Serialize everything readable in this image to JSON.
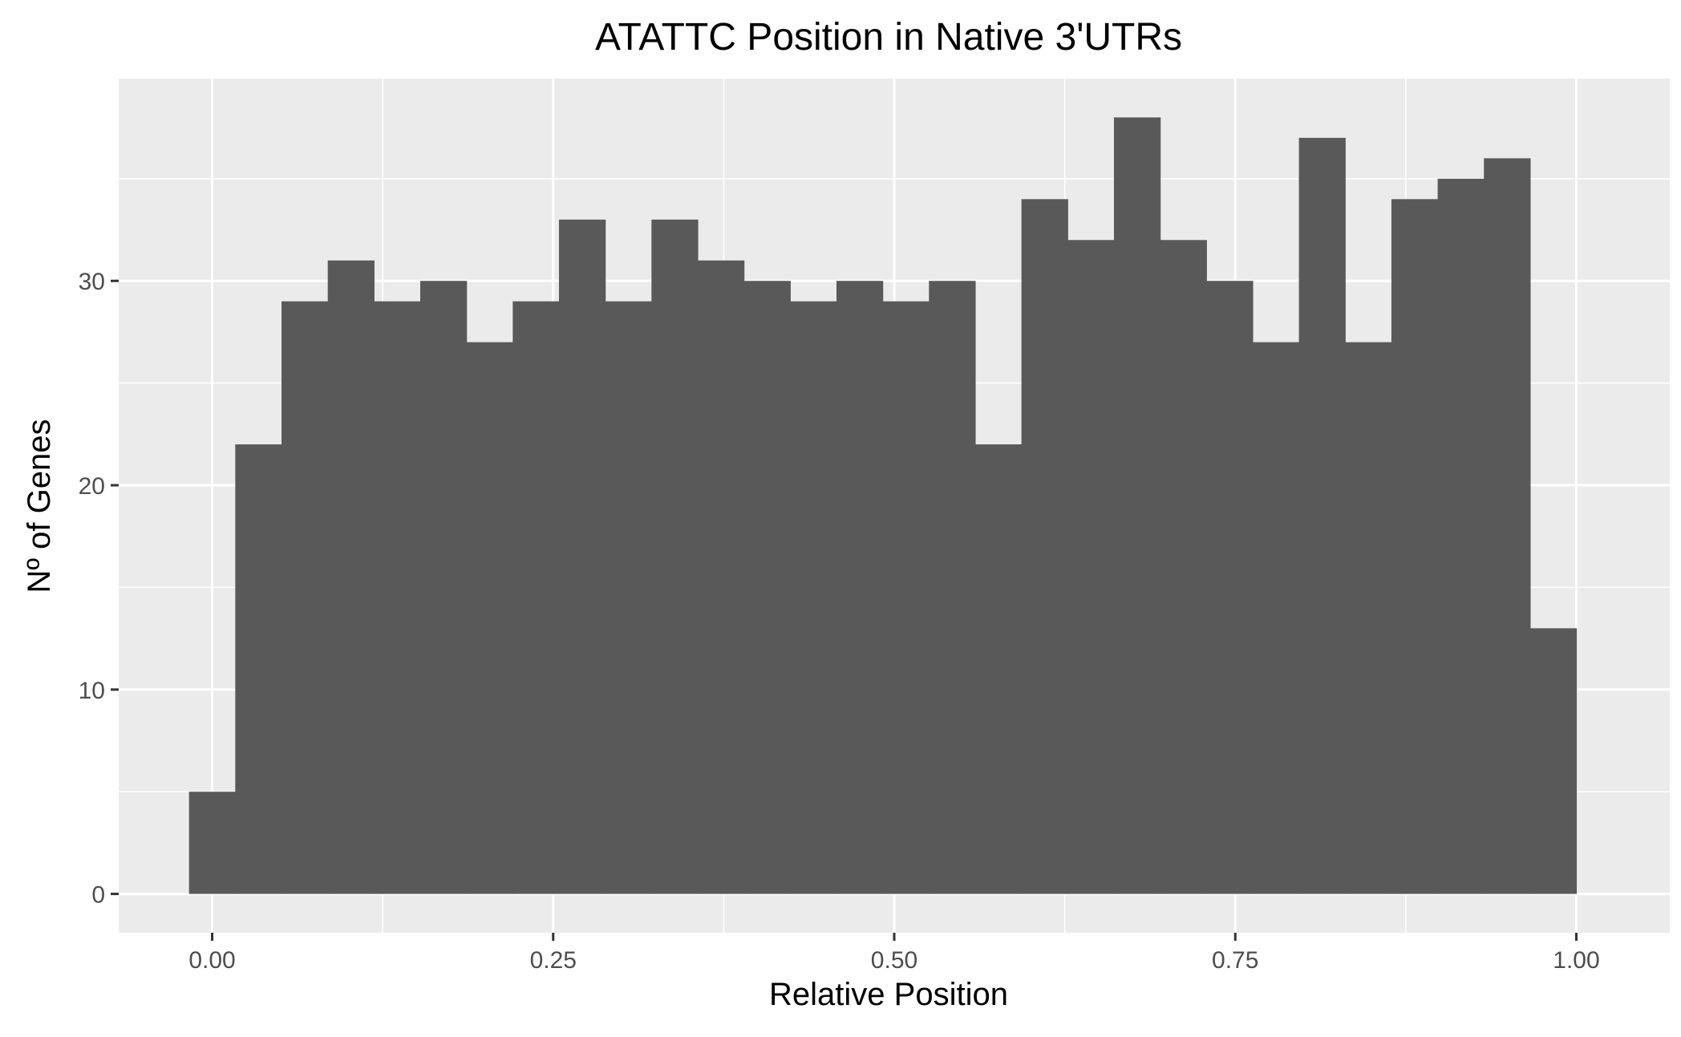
{
  "chart_data": {
    "type": "bar",
    "title": "ATATTC Position in Native 3'UTRs",
    "xlabel": "Relative Position",
    "ylabel": "Nº of Genes",
    "xlim": [
      -0.0685,
      1.0685
    ],
    "ylim": [
      -1.9,
      39.9
    ],
    "bin_width": 0.0339,
    "bin_centers": [
      0.0,
      0.0339,
      0.0678,
      0.1017,
      0.1356,
      0.1695,
      0.2034,
      0.2373,
      0.2712,
      0.3051,
      0.339,
      0.3729,
      0.4068,
      0.4407,
      0.4746,
      0.5085,
      0.5424,
      0.5763,
      0.6102,
      0.6441,
      0.678,
      0.7119,
      0.7458,
      0.7797,
      0.8136,
      0.8475,
      0.8814,
      0.9153,
      0.9492,
      0.9831
    ],
    "values": [
      5,
      22,
      29,
      31,
      29,
      30,
      27,
      29,
      33,
      29,
      33,
      31,
      30,
      29,
      30,
      29,
      30,
      22,
      34,
      32,
      38,
      32,
      30,
      27,
      37,
      27,
      34,
      35,
      36,
      13
    ],
    "x_ticks": [
      0.0,
      0.25,
      0.5,
      0.75,
      1.0
    ],
    "x_tick_labels": [
      "0.00",
      "0.25",
      "0.50",
      "0.75",
      "1.00"
    ],
    "y_ticks": [
      0,
      10,
      20,
      30
    ],
    "y_tick_labels": [
      "0",
      "10",
      "20",
      "30"
    ],
    "grid": true,
    "legend": "none",
    "colors": {
      "panel_background": "#ebebeb",
      "grid_major": "#ffffff",
      "grid_minor": "#ffffff",
      "bar_fill": "#595959",
      "tick_text": "#4d4d4d",
      "tick_mark": "#333333"
    }
  }
}
